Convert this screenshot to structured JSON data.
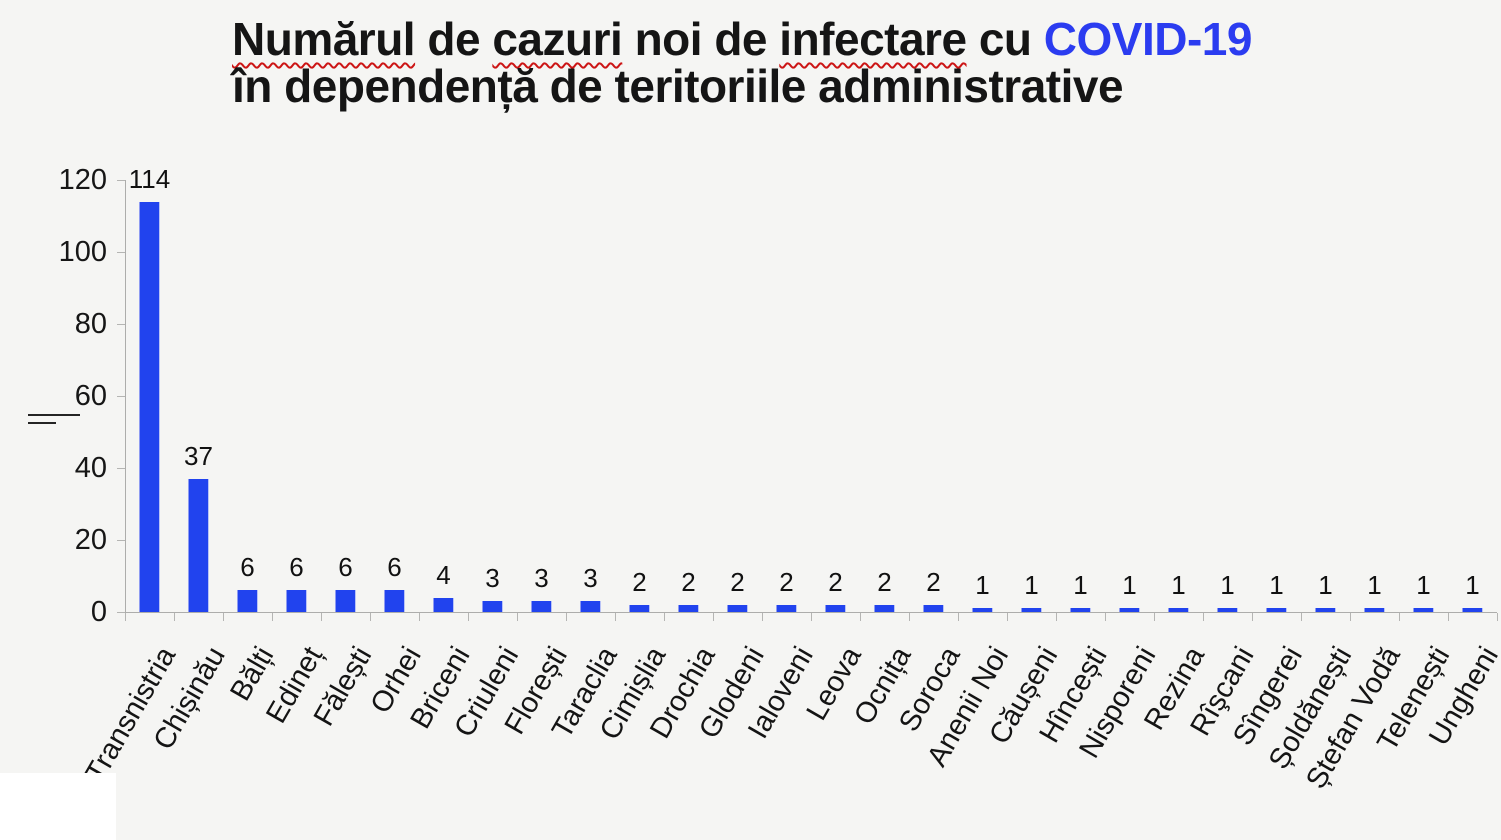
{
  "title": {
    "part_numarul": "Numărul",
    "part_de1": " de ",
    "part_cazuri": "cazuri",
    "part_noi_de": " noi de ",
    "part_infectare": "infectare",
    "part_cu": " cu ",
    "part_covid": "COVID-19",
    "line2": "în dependență de teritoriile administrative"
  },
  "colors": {
    "bar_fill": "#2143ee",
    "bar_edge_light": "#b9c3f6",
    "title_highlight_blue": "#2b3cf0",
    "spellcheck_red": "#cc1515",
    "axis_gray": "#adadab",
    "background": "#f5f5f3"
  },
  "chart_data": {
    "type": "bar",
    "title": "Numărul de cazuri noi de infectare cu COVID-19 în dependență de teritoriile administrative",
    "xlabel": "",
    "ylabel": "",
    "ylim": [
      0,
      120
    ],
    "yticks": [
      0,
      20,
      40,
      60,
      80,
      100,
      120
    ],
    "grid": false,
    "legend_position": "none",
    "value_labels_shown": true,
    "categories": [
      "Transnistria",
      "Chișinău",
      "Bălți",
      "Edineț",
      "Fălești",
      "Orhei",
      "Briceni",
      "Criuleni",
      "Florești",
      "Taraclia",
      "Cimișlia",
      "Drochia",
      "Glodeni",
      "Ialoveni",
      "Leova",
      "Ocnița",
      "Soroca",
      "Anenii Noi",
      "Căușeni",
      "Hîncești",
      "Nisporeni",
      "Rezina",
      "Rîşcani",
      "Sîngerei",
      "Șoldănești",
      "Ștefan Vodă",
      "Telenești",
      "Ungheni"
    ],
    "values": [
      114,
      37,
      6,
      6,
      6,
      6,
      4,
      3,
      3,
      3,
      2,
      2,
      2,
      2,
      2,
      2,
      2,
      1,
      1,
      1,
      1,
      1,
      1,
      1,
      1,
      1,
      1,
      1
    ]
  }
}
